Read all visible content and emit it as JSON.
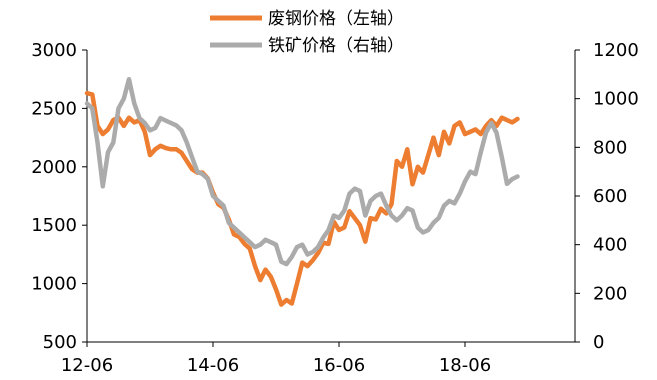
{
  "chart_data": {
    "type": "line",
    "title": "",
    "x_ticks": [
      "12-06",
      "14-06",
      "16-06",
      "18-06"
    ],
    "left_axis": {
      "label": "",
      "ylim": [
        500,
        3000
      ],
      "ticks": [
        "500",
        "1000",
        "1500",
        "2000",
        "2500",
        "3000"
      ]
    },
    "right_axis": {
      "label": "",
      "ylim": [
        0,
        1200
      ],
      "ticks": [
        "0",
        "200",
        "400",
        "600",
        "800",
        "1000",
        "1200"
      ]
    },
    "grid": false,
    "legend_position": "top-center",
    "series": [
      {
        "name": "废钢价格（左轴）",
        "axis": "left",
        "color": "#ED7D31",
        "points": [
          [
            "2012-06",
            2630
          ],
          [
            "2012-07",
            2620
          ],
          [
            "2012-08",
            2350
          ],
          [
            "2012-09",
            2280
          ],
          [
            "2012-10",
            2320
          ],
          [
            "2012-11",
            2400
          ],
          [
            "2012-12",
            2420
          ],
          [
            "2013-01",
            2350
          ],
          [
            "2013-02",
            2420
          ],
          [
            "2013-03",
            2380
          ],
          [
            "2013-04",
            2400
          ],
          [
            "2013-05",
            2300
          ],
          [
            "2013-06",
            2100
          ],
          [
            "2013-07",
            2150
          ],
          [
            "2013-08",
            2180
          ],
          [
            "2013-09",
            2160
          ],
          [
            "2013-10",
            2150
          ],
          [
            "2013-11",
            2150
          ],
          [
            "2013-12",
            2120
          ],
          [
            "2014-01",
            2050
          ],
          [
            "2014-02",
            1980
          ],
          [
            "2014-03",
            1950
          ],
          [
            "2014-04",
            1950
          ],
          [
            "2014-05",
            1900
          ],
          [
            "2014-06",
            1780
          ],
          [
            "2014-07",
            1680
          ],
          [
            "2014-08",
            1650
          ],
          [
            "2014-09",
            1550
          ],
          [
            "2014-10",
            1420
          ],
          [
            "2014-11",
            1400
          ],
          [
            "2014-12",
            1340
          ],
          [
            "2015-01",
            1300
          ],
          [
            "2015-02",
            1150
          ],
          [
            "2015-03",
            1030
          ],
          [
            "2015-04",
            1120
          ],
          [
            "2015-05",
            1060
          ],
          [
            "2015-06",
            950
          ],
          [
            "2015-07",
            820
          ],
          [
            "2015-08",
            860
          ],
          [
            "2015-09",
            830
          ],
          [
            "2015-10",
            1000
          ],
          [
            "2015-11",
            1180
          ],
          [
            "2015-12",
            1150
          ],
          [
            "2016-01",
            1200
          ],
          [
            "2016-02",
            1260
          ],
          [
            "2016-03",
            1350
          ],
          [
            "2016-04",
            1340
          ],
          [
            "2016-05",
            1530
          ],
          [
            "2016-06",
            1460
          ],
          [
            "2016-07",
            1480
          ],
          [
            "2016-08",
            1620
          ],
          [
            "2016-09",
            1560
          ],
          [
            "2016-10",
            1500
          ],
          [
            "2016-11",
            1360
          ],
          [
            "2016-12",
            1560
          ],
          [
            "2017-01",
            1550
          ],
          [
            "2017-02",
            1640
          ],
          [
            "2017-03",
            1600
          ],
          [
            "2017-04",
            1680
          ],
          [
            "2017-05",
            2050
          ],
          [
            "2017-06",
            2000
          ],
          [
            "2017-07",
            2150
          ],
          [
            "2017-08",
            1850
          ],
          [
            "2017-09",
            2000
          ],
          [
            "2017-10",
            1950
          ],
          [
            "2017-11",
            2100
          ],
          [
            "2017-12",
            2250
          ],
          [
            "2018-01",
            2100
          ],
          [
            "2018-02",
            2300
          ],
          [
            "2018-03",
            2200
          ],
          [
            "2018-04",
            2350
          ],
          [
            "2018-05",
            2380
          ],
          [
            "2018-06",
            2280
          ],
          [
            "2018-07",
            2300
          ],
          [
            "2018-08",
            2320
          ],
          [
            "2018-09",
            2280
          ],
          [
            "2018-10",
            2350
          ],
          [
            "2018-11",
            2400
          ],
          [
            "2018-12",
            2350
          ],
          [
            "2019-01",
            2420
          ],
          [
            "2019-02",
            2400
          ],
          [
            "2019-03",
            2380
          ],
          [
            "2019-04",
            2410
          ]
        ]
      },
      {
        "name": "铁矿价格（右轴）",
        "axis": "right",
        "color": "#ABABAB",
        "points": [
          [
            "2012-06",
            980
          ],
          [
            "2012-07",
            960
          ],
          [
            "2012-08",
            820
          ],
          [
            "2012-09",
            640
          ],
          [
            "2012-10",
            780
          ],
          [
            "2012-11",
            820
          ],
          [
            "2012-12",
            960
          ],
          [
            "2013-01",
            1000
          ],
          [
            "2013-02",
            1080
          ],
          [
            "2013-03",
            980
          ],
          [
            "2013-04",
            920
          ],
          [
            "2013-05",
            900
          ],
          [
            "2013-06",
            870
          ],
          [
            "2013-07",
            880
          ],
          [
            "2013-08",
            920
          ],
          [
            "2013-09",
            910
          ],
          [
            "2013-10",
            900
          ],
          [
            "2013-11",
            890
          ],
          [
            "2013-12",
            870
          ],
          [
            "2014-01",
            820
          ],
          [
            "2014-02",
            760
          ],
          [
            "2014-03",
            700
          ],
          [
            "2014-04",
            690
          ],
          [
            "2014-05",
            670
          ],
          [
            "2014-06",
            600
          ],
          [
            "2014-07",
            580
          ],
          [
            "2014-08",
            560
          ],
          [
            "2014-09",
            490
          ],
          [
            "2014-10",
            470
          ],
          [
            "2014-11",
            450
          ],
          [
            "2014-12",
            430
          ],
          [
            "2015-01",
            410
          ],
          [
            "2015-02",
            390
          ],
          [
            "2015-03",
            400
          ],
          [
            "2015-04",
            420
          ],
          [
            "2015-05",
            410
          ],
          [
            "2015-06",
            400
          ],
          [
            "2015-07",
            330
          ],
          [
            "2015-08",
            320
          ],
          [
            "2015-09",
            350
          ],
          [
            "2015-10",
            390
          ],
          [
            "2015-11",
            400
          ],
          [
            "2015-12",
            360
          ],
          [
            "2016-01",
            370
          ],
          [
            "2016-02",
            390
          ],
          [
            "2016-03",
            430
          ],
          [
            "2016-04",
            460
          ],
          [
            "2016-05",
            520
          ],
          [
            "2016-06",
            510
          ],
          [
            "2016-07",
            540
          ],
          [
            "2016-08",
            610
          ],
          [
            "2016-09",
            630
          ],
          [
            "2016-10",
            620
          ],
          [
            "2016-11",
            520
          ],
          [
            "2016-12",
            580
          ],
          [
            "2017-01",
            600
          ],
          [
            "2017-02",
            610
          ],
          [
            "2017-03",
            560
          ],
          [
            "2017-04",
            520
          ],
          [
            "2017-05",
            500
          ],
          [
            "2017-06",
            520
          ],
          [
            "2017-07",
            550
          ],
          [
            "2017-08",
            540
          ],
          [
            "2017-09",
            470
          ],
          [
            "2017-10",
            450
          ],
          [
            "2017-11",
            460
          ],
          [
            "2017-12",
            490
          ],
          [
            "2018-01",
            510
          ],
          [
            "2018-02",
            560
          ],
          [
            "2018-03",
            580
          ],
          [
            "2018-04",
            570
          ],
          [
            "2018-05",
            610
          ],
          [
            "2018-06",
            660
          ],
          [
            "2018-07",
            700
          ],
          [
            "2018-08",
            690
          ],
          [
            "2018-09",
            780
          ],
          [
            "2018-10",
            860
          ],
          [
            "2018-11",
            900
          ],
          [
            "2018-12",
            860
          ],
          [
            "2019-01",
            760
          ],
          [
            "2019-02",
            650
          ],
          [
            "2019-03",
            670
          ],
          [
            "2019-04",
            680
          ]
        ]
      }
    ]
  }
}
